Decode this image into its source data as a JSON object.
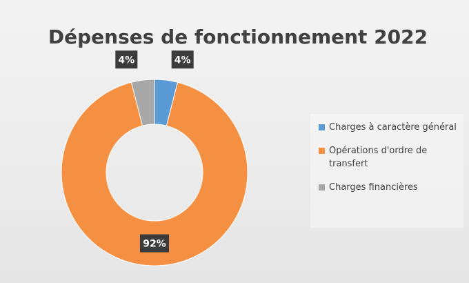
{
  "chart_data": {
    "type": "donut",
    "title": "Dépenses de fonctionnement 2022",
    "categories": [
      "Charges à caractère général",
      "Opérations d'ordre de transfert",
      "Charges financières"
    ],
    "values": [
      4,
      92,
      4
    ],
    "value_labels": [
      "4%",
      "92%",
      "4%"
    ],
    "colors": [
      "#5b9bd5",
      "#f59042",
      "#a8a8a8"
    ],
    "legend": "right"
  }
}
